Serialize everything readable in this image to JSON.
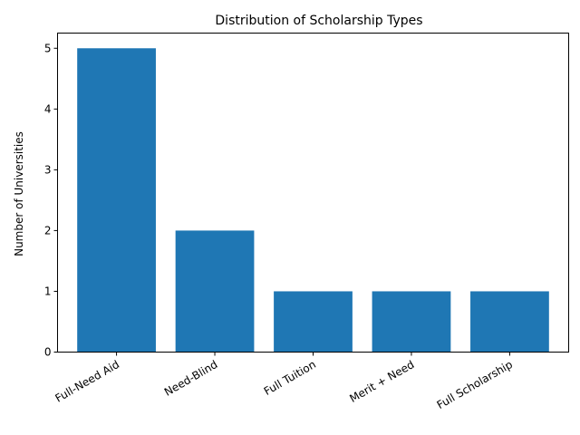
{
  "chart_data": {
    "type": "bar",
    "title": "Distribution of Scholarship Types",
    "xlabel": "",
    "ylabel": "Number of Universities",
    "categories": [
      "Full-Need Aid",
      "Need-Blind",
      "Full Tuition",
      "Merit + Need",
      "Full Scholarship"
    ],
    "values": [
      5,
      2,
      1,
      1,
      1
    ],
    "ylim": [
      0,
      5.25
    ],
    "yticks": [
      0,
      1,
      2,
      3,
      4,
      5
    ],
    "bar_color": "#1f77b4",
    "grid": false,
    "legend": "none"
  }
}
